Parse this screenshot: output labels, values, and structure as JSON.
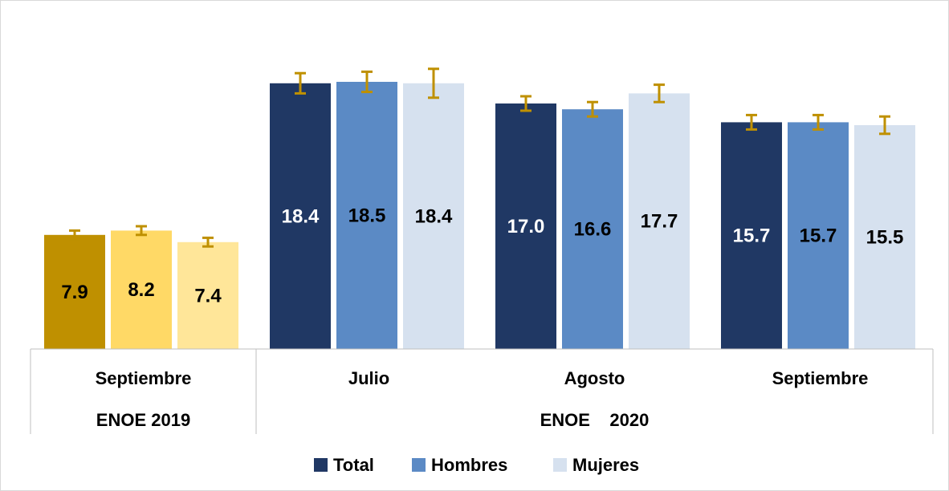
{
  "chart_data": {
    "type": "bar",
    "groups": [
      {
        "label": "Septiembre",
        "section": "2019"
      },
      {
        "label": "Julio",
        "section": "2020"
      },
      {
        "label": "Agosto",
        "section": "2020"
      },
      {
        "label": "Septiembre",
        "section": "2020"
      }
    ],
    "group_labels": [
      "ENOE 2019",
      "ENOE    2020"
    ],
    "series": [
      {
        "name": "Total",
        "values": [
          7.9,
          18.4,
          17.0,
          15.7
        ],
        "err_low": [
          0.3,
          0.7,
          0.5,
          0.5
        ],
        "err_high": [
          0.3,
          0.7,
          0.5,
          0.5
        ]
      },
      {
        "name": "Hombres",
        "values": [
          8.2,
          18.5,
          16.6,
          15.7
        ],
        "err_low": [
          0.3,
          0.7,
          0.5,
          0.5
        ],
        "err_high": [
          0.3,
          0.7,
          0.5,
          0.5
        ]
      },
      {
        "name": "Mujeres",
        "values": [
          7.4,
          18.4,
          17.7,
          15.5
        ],
        "err_low": [
          0.3,
          1.0,
          0.6,
          0.6
        ],
        "err_high": [
          0.3,
          1.0,
          0.6,
          0.6
        ]
      }
    ],
    "colors": {
      "2019": [
        "#bf9000",
        "#ffd966",
        "#ffe699"
      ],
      "2020": [
        "#203864",
        "#5b8ac5",
        "#d6e1ef"
      ],
      "error_bar": "#bf9000"
    },
    "label_colors": {
      "2019": [
        "#000000",
        "#000000",
        "#000000"
      ],
      "2020": [
        "#ffffff",
        "#000000",
        "#000000"
      ]
    },
    "legend": {
      "position": "bottom",
      "entries": [
        "Total",
        "Hombres",
        "Mujeres"
      ]
    },
    "ylim": [
      0,
      21
    ],
    "grid": false
  }
}
